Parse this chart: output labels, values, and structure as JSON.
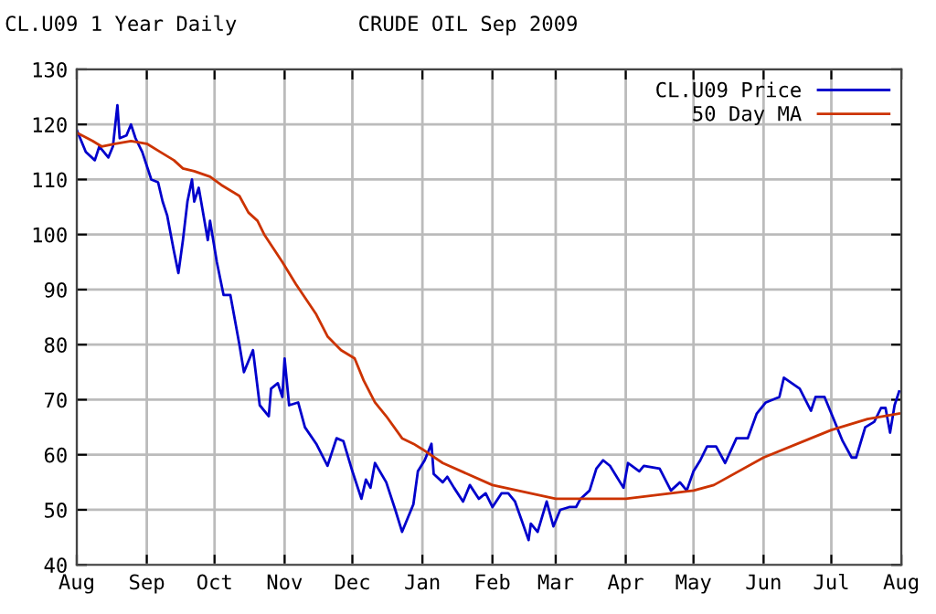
{
  "chart_data": {
    "type": "line",
    "title": "CRUDE OIL Sep 2009",
    "subtitle": "CL.U09 1 Year Daily",
    "xlim": [
      "2008-08-01",
      "2009-08-01"
    ],
    "xticks": [
      {
        "value": "2008-08-01",
        "label": "Aug"
      },
      {
        "value": "2008-09-01",
        "label": "Sep"
      },
      {
        "value": "2008-10-01",
        "label": "Oct"
      },
      {
        "value": "2008-11-01",
        "label": "Nov"
      },
      {
        "value": "2008-12-01",
        "label": "Dec"
      },
      {
        "value": "2009-01-01",
        "label": "Jan"
      },
      {
        "value": "2009-02-01",
        "label": "Feb"
      },
      {
        "value": "2009-03-01",
        "label": "Mar"
      },
      {
        "value": "2009-04-01",
        "label": "Apr"
      },
      {
        "value": "2009-05-01",
        "label": "May"
      },
      {
        "value": "2009-06-01",
        "label": "Jun"
      },
      {
        "value": "2009-07-01",
        "label": "Jul"
      },
      {
        "value": "2009-08-01",
        "label": "Aug"
      }
    ],
    "ylim": [
      40,
      130
    ],
    "yticks": [
      40,
      50,
      60,
      70,
      80,
      90,
      100,
      110,
      120,
      130
    ],
    "grid": true,
    "legend": "top right",
    "marker": "none",
    "line_style": "solid",
    "series": [
      {
        "name": "CL.U09 Price",
        "color": "#0000cc",
        "x": [
          "2008-08-01",
          "2008-08-05",
          "2008-08-09",
          "2008-08-11",
          "2008-08-15",
          "2008-08-17",
          "2008-08-19",
          "2008-08-20",
          "2008-08-23",
          "2008-08-25",
          "2008-08-27",
          "2008-08-30",
          "2008-09-03",
          "2008-09-06",
          "2008-09-08",
          "2008-09-10",
          "2008-09-13",
          "2008-09-15",
          "2008-09-17",
          "2008-09-19",
          "2008-09-21",
          "2008-09-22",
          "2008-09-24",
          "2008-09-28",
          "2008-09-29",
          "2008-10-02",
          "2008-10-05",
          "2008-10-08",
          "2008-10-12",
          "2008-10-14",
          "2008-10-18",
          "2008-10-21",
          "2008-10-25",
          "2008-10-26",
          "2008-10-29",
          "2008-10-31",
          "2008-11-01",
          "2008-11-03",
          "2008-11-07",
          "2008-11-10",
          "2008-11-15",
          "2008-11-20",
          "2008-11-24",
          "2008-11-27",
          "2008-12-01",
          "2008-12-05",
          "2008-12-07",
          "2008-12-09",
          "2008-12-11",
          "2008-12-16",
          "2008-12-20",
          "2008-12-23",
          "2008-12-28",
          "2008-12-30",
          "2009-01-02",
          "2009-01-05",
          "2009-01-06",
          "2009-01-10",
          "2009-01-12",
          "2009-01-15",
          "2009-01-19",
          "2009-01-22",
          "2009-01-26",
          "2009-01-29",
          "2009-02-01",
          "2009-02-05",
          "2009-02-08",
          "2009-02-11",
          "2009-02-14",
          "2009-02-17",
          "2009-02-18",
          "2009-02-21",
          "2009-02-25",
          "2009-02-28",
          "2009-03-03",
          "2009-03-07",
          "2009-03-10",
          "2009-03-12",
          "2009-03-16",
          "2009-03-19",
          "2009-03-22",
          "2009-03-25",
          "2009-03-31",
          "2009-04-02",
          "2009-04-07",
          "2009-04-09",
          "2009-04-16",
          "2009-04-21",
          "2009-04-25",
          "2009-04-28",
          "2009-05-01",
          "2009-05-04",
          "2009-05-07",
          "2009-05-11",
          "2009-05-15",
          "2009-05-20",
          "2009-05-25",
          "2009-05-29",
          "2009-06-02",
          "2009-06-05",
          "2009-06-08",
          "2009-06-10",
          "2009-06-17",
          "2009-06-22",
          "2009-06-24",
          "2009-06-28",
          "2009-07-02",
          "2009-07-06",
          "2009-07-10",
          "2009-07-12",
          "2009-07-16",
          "2009-07-20",
          "2009-07-23",
          "2009-07-25",
          "2009-07-27",
          "2009-07-29",
          "2009-07-31"
        ],
        "values": [
          119,
          115,
          113.5,
          116,
          114,
          116,
          123.5,
          117.5,
          118,
          120,
          117.5,
          115,
          110,
          109.5,
          106,
          103.5,
          97,
          93,
          99,
          106,
          110,
          106,
          108.5,
          99,
          102.5,
          95,
          89,
          89,
          80,
          75,
          79,
          69,
          67,
          72,
          73,
          70.5,
          77.5,
          69,
          69.5,
          65,
          62,
          58,
          63,
          62.5,
          57,
          52,
          55.5,
          54,
          58.5,
          55,
          50,
          46,
          51,
          57,
          59,
          62,
          56.5,
          55,
          56,
          54,
          51.5,
          54.5,
          52,
          53,
          50.5,
          53,
          53,
          51.5,
          48,
          44.5,
          47.5,
          46,
          51.5,
          47,
          50,
          50.5,
          50.5,
          52,
          53.5,
          57.5,
          59,
          58,
          54,
          58.5,
          57,
          58,
          57.5,
          53.5,
          55,
          53.5,
          57,
          59,
          61.5,
          61.5,
          58.5,
          63,
          63,
          67.5,
          69.5,
          70,
          70.5,
          74,
          72,
          68,
          70.5,
          70.5,
          66.5,
          62.5,
          59.5,
          59.5,
          65,
          66,
          68.5,
          68.5,
          64,
          69,
          71.5
        ]
      },
      {
        "name": "50 Day MA",
        "color": "#cc3300",
        "x": [
          "2008-08-01",
          "2008-08-08",
          "2008-08-12",
          "2008-08-18",
          "2008-08-25",
          "2008-09-01",
          "2008-09-07",
          "2008-09-13",
          "2008-09-17",
          "2008-09-22",
          "2008-09-29",
          "2008-10-04",
          "2008-10-12",
          "2008-10-16",
          "2008-10-20",
          "2008-10-23",
          "2008-10-31",
          "2008-11-06",
          "2008-11-15",
          "2008-11-20",
          "2008-11-26",
          "2008-12-02",
          "2008-12-06",
          "2008-12-11",
          "2008-12-16",
          "2008-12-23",
          "2008-12-28",
          "2009-01-01",
          "2009-01-10",
          "2009-02-01",
          "2009-03-01",
          "2009-04-01",
          "2009-05-01",
          "2009-05-10",
          "2009-06-01",
          "2009-06-22",
          "2009-07-01",
          "2009-07-17",
          "2009-07-31"
        ],
        "values": [
          118.5,
          117,
          116,
          116.5,
          117,
          116.5,
          115,
          113.5,
          112,
          111.5,
          110.5,
          109,
          107,
          104,
          102.5,
          100,
          95,
          91,
          85.5,
          81.5,
          79,
          77.5,
          73.5,
          69.5,
          67,
          63,
          62,
          61,
          58.5,
          54.5,
          52,
          52,
          53.5,
          54.5,
          59.5,
          63,
          64.5,
          66.5,
          67.5
        ]
      }
    ]
  }
}
